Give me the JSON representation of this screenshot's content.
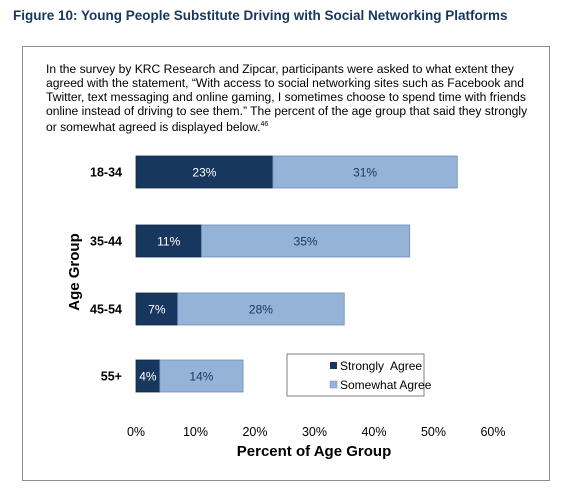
{
  "figure": {
    "title": "Figure 10: Young People Substitute Driving with Social Networking Platforms",
    "description": "In the survey by KRC Research and Zipcar, participants were asked to what extent they agreed with the statement, “With access to social networking sites such as Facebook and Twitter, text messaging and online gaming, I sometimes choose to spend time with friends online instead of driving to see them.” The percent of the age group that said they strongly or somewhat agreed is displayed below.",
    "footnote": "46"
  },
  "colors": {
    "title": "#17375e",
    "strongly": "#17375e",
    "somewhat": "#95b3d7"
  },
  "chart_data": {
    "type": "bar",
    "orientation": "horizontal",
    "stacked": true,
    "categories": [
      "18-34",
      "35-44",
      "45-54",
      "55+"
    ],
    "series": [
      {
        "name": "Strongly  Agree",
        "values": [
          23,
          11,
          7,
          4
        ],
        "labels": [
          "23%",
          "11%",
          "7%",
          "4%"
        ]
      },
      {
        "name": "Somewhat Agree",
        "values": [
          31,
          35,
          28,
          14
        ],
        "labels": [
          "31%",
          "35%",
          "28%",
          "14%"
        ]
      }
    ],
    "xlabel": "Percent of Age Group",
    "ylabel": "Age Group",
    "xlim": [
      0,
      60
    ],
    "xticks": [
      "0%",
      "10%",
      "20%",
      "30%",
      "40%",
      "50%",
      "60%"
    ],
    "grid": false,
    "legend_position": "bottom-right"
  }
}
